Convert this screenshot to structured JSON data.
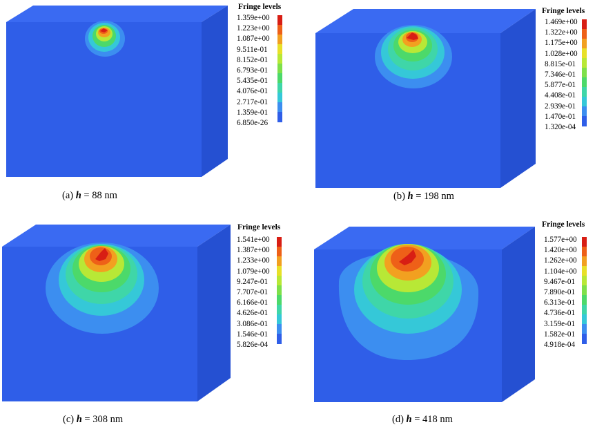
{
  "colors": {
    "cube_front": "#2f5ee8",
    "cube_top": "#3a6af2",
    "cube_side": "#2550d2",
    "contour_scale": [
      "#2f5ee8",
      "#3c8ef0",
      "#35c8d8",
      "#3fd6a8",
      "#4cd96a",
      "#7ee04a",
      "#b8e836",
      "#e8e028",
      "#f2a020",
      "#ee6018",
      "#d81e14"
    ]
  },
  "panels": [
    {
      "id": "a",
      "caption": {
        "prefix": "(a) ",
        "var": "h",
        "rest": " = 88 nm"
      },
      "legend": {
        "title": "Fringe levels",
        "labels": [
          "1.359e+00",
          "1.223e+00",
          "1.087e+00",
          "9.511e-01",
          "8.152e-01",
          "6.793e-01",
          "5.435e-01",
          "4.076e-01",
          "2.717e-01",
          "1.359e-01",
          "6.850e-26"
        ]
      }
    },
    {
      "id": "b",
      "caption": {
        "prefix": "(b) ",
        "var": "h",
        "rest": " = 198 nm"
      },
      "legend": {
        "title": "Fringe levels",
        "labels": [
          "1.469e+00",
          "1.322e+00",
          "1.175e+00",
          "1.028e+00",
          "8.815e-01",
          "7.346e-01",
          "5.877e-01",
          "4.408e-01",
          "2.939e-01",
          "1.470e-01",
          "1.320e-04"
        ]
      }
    },
    {
      "id": "c",
      "caption": {
        "prefix": "(c) ",
        "var": "h",
        "rest": " = 308 nm"
      },
      "legend": {
        "title": "Fringe levels",
        "labels": [
          "1.541e+00",
          "1.387e+00",
          "1.233e+00",
          "1.079e+00",
          "9.247e-01",
          "7.707e-01",
          "6.166e-01",
          "4.626e-01",
          "3.086e-01",
          "1.546e-01",
          "5.826e-04"
        ]
      }
    },
    {
      "id": "d",
      "caption": {
        "prefix": "(d) ",
        "var": "h",
        "rest": " = 418 nm"
      },
      "legend": {
        "title": "Fringe levels",
        "labels": [
          "1.577e+00",
          "1.420e+00",
          "1.262e+00",
          "1.104e+00",
          "9.467e-01",
          "7.890e-01",
          "6.313e-01",
          "4.736e-01",
          "3.159e-01",
          "1.582e-01",
          "4.918e-04"
        ]
      }
    }
  ]
}
